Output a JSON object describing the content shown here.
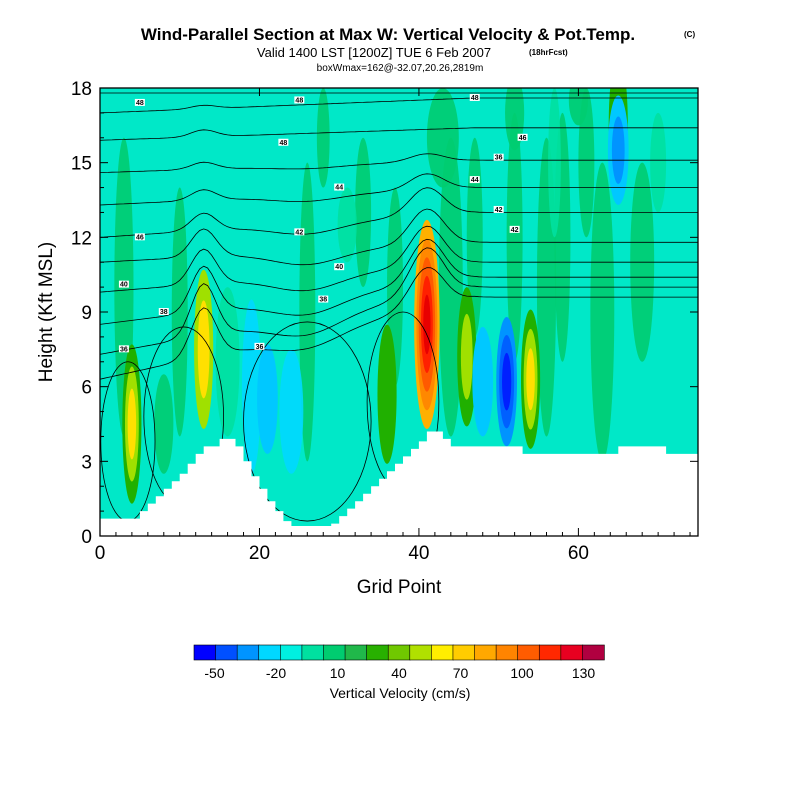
{
  "header": {
    "title": "Wind-Parallel Section at Max W: Vertical Velocity & Pot.Temp.",
    "title_mark": "(C)",
    "subtitle": "Valid 1400 LST [1200Z] TUE 6 Feb 2007",
    "subtitle_mark": "(18hrFcst)",
    "subtitle2": "boxWmax=162@-32.07,20.26,2819m"
  },
  "chart_data": {
    "type": "heatmap",
    "title": "Wind-Parallel Section at Max W: Vertical Velocity & Pot.Temp.",
    "xlabel": "Grid Point",
    "ylabel": "Height (Kft MSL)",
    "xlim": [
      0,
      75
    ],
    "ylim": [
      0,
      18
    ],
    "xticks": [
      0,
      20,
      40,
      60
    ],
    "xtick_labels": [
      "0",
      "20",
      "40",
      "60"
    ],
    "yticks": [
      0,
      3,
      6,
      9,
      12,
      15,
      18
    ],
    "ytick_labels": [
      "0",
      "3",
      "6",
      "9",
      "12",
      "15",
      "18"
    ],
    "background_fill": {
      "color": "#00e8c8",
      "value_range": [
        -10,
        0
      ]
    },
    "terrain_profile": {
      "x": [
        0,
        3,
        5,
        6,
        7,
        8,
        9,
        10,
        11,
        12,
        13,
        14,
        15,
        16,
        17,
        18,
        19,
        20,
        21,
        22,
        23,
        24,
        25,
        26,
        27,
        28,
        29,
        30,
        31,
        32,
        33,
        34,
        35,
        36,
        37,
        38,
        39,
        40,
        41,
        42,
        43,
        44,
        45,
        46,
        47,
        48,
        49,
        50,
        51,
        52,
        53,
        54,
        55,
        56,
        57,
        58,
        59,
        60,
        61,
        62,
        63,
        64,
        65,
        66,
        67,
        68,
        69,
        70,
        71,
        72,
        73,
        74,
        75
      ],
      "height_kft": [
        0.7,
        0.7,
        1.0,
        1.3,
        1.6,
        1.9,
        2.2,
        2.5,
        2.9,
        3.3,
        3.6,
        3.6,
        3.9,
        3.9,
        3.6,
        3.0,
        2.4,
        1.9,
        1.4,
        1.0,
        0.6,
        0.4,
        0.4,
        0.4,
        0.4,
        0.4,
        0.5,
        0.8,
        1.1,
        1.4,
        1.7,
        2.0,
        2.3,
        2.6,
        2.9,
        3.2,
        3.5,
        3.8,
        4.2,
        4.2,
        3.9,
        3.6,
        3.6,
        3.6,
        3.6,
        3.6,
        3.6,
        3.6,
        3.6,
        3.6,
        3.3,
        3.3,
        3.3,
        3.3,
        3.3,
        3.3,
        3.3,
        3.3,
        3.3,
        3.3,
        3.3,
        3.3,
        3.6,
        3.6,
        3.6,
        3.6,
        3.6,
        3.6,
        3.3,
        3.3,
        3.3,
        3.3,
        3.3
      ]
    },
    "series": [
      {
        "name": "updraft",
        "x": 41,
        "y_kft": 8.5,
        "peak_cm_s": 162,
        "colors": [
          "#ffb000",
          "#ff8800",
          "#ff5a00",
          "#ff2000",
          "#e80000"
        ]
      },
      {
        "name": "updraft",
        "x": 13,
        "y_kft": 7.5,
        "peak_cm_s": 70,
        "colors": [
          "#a0e000",
          "#ffe000"
        ]
      },
      {
        "name": "updraft",
        "x": 4,
        "y_kft": 4.5,
        "peak_cm_s": 55,
        "colors": [
          "#20b000",
          "#a0e000",
          "#ffe000"
        ]
      },
      {
        "name": "updraft",
        "x": 54,
        "y_kft": 6.3,
        "peak_cm_s": 50,
        "colors": [
          "#20b000",
          "#a0e000",
          "#ffe000"
        ]
      },
      {
        "name": "updraft",
        "x": 46,
        "y_kft": 7.2,
        "peak_cm_s": 35,
        "colors": [
          "#20b000",
          "#a0e000"
        ]
      },
      {
        "name": "updraft",
        "x": 36,
        "y_kft": 5.7,
        "peak_cm_s": 20,
        "colors": [
          "#20b000"
        ]
      },
      {
        "name": "updraft",
        "x": 65,
        "y_kft": 16.5,
        "peak_cm_s": 20,
        "colors": [
          "#20b000"
        ]
      },
      {
        "name": "downdraft",
        "x": 51,
        "y_kft": 6.2,
        "peak_cm_s": -45,
        "colors": [
          "#0094ff",
          "#0060ff",
          "#0020ff"
        ]
      },
      {
        "name": "downdraft",
        "x": 21,
        "y_kft": 5.5,
        "peak_cm_s": -20,
        "colors": [
          "#00c8ff"
        ]
      },
      {
        "name": "downdraft",
        "x": 65,
        "y_kft": 15.5,
        "peak_cm_s": -30,
        "colors": [
          "#00c8ff",
          "#0094ff"
        ]
      },
      {
        "name": "downdraft",
        "x": 48,
        "y_kft": 6.2,
        "peak_cm_s": -15,
        "colors": [
          "#00c8ff"
        ]
      }
    ],
    "contour_labels": [
      "48",
      "48",
      "48",
      "48",
      "46",
      "46",
      "44",
      "44",
      "42",
      "42",
      "42",
      "40",
      "40",
      "38",
      "38",
      "36",
      "36",
      "36"
    ],
    "colorbar": {
      "label": "Vertical Velocity (cm/s)",
      "labels": [
        "-50",
        "-20",
        "10",
        "40",
        "70",
        "100",
        "130"
      ],
      "label_values": [
        -50,
        -20,
        10,
        40,
        70,
        100,
        130
      ],
      "range": [
        -60,
        140
      ],
      "colors": [
        "#0000ff",
        "#0050ff",
        "#0094ff",
        "#00d8ff",
        "#00f0e0",
        "#00e0a0",
        "#00cc70",
        "#20b84a",
        "#28b000",
        "#70c800",
        "#b0e000",
        "#ffee00",
        "#ffcc00",
        "#ffa800",
        "#ff8400",
        "#ff5c00",
        "#ff2800",
        "#e80020",
        "#b00040"
      ]
    }
  }
}
